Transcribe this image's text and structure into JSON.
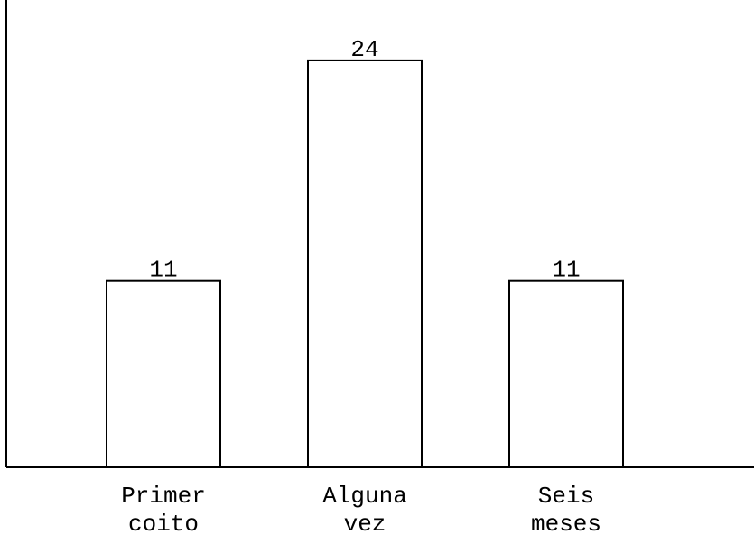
{
  "chart_data": {
    "type": "bar",
    "categories": [
      [
        "Primer",
        "coito"
      ],
      [
        "Alguna",
        "vez"
      ],
      [
        "Seis",
        "meses"
      ]
    ],
    "values": [
      11,
      24,
      11
    ],
    "data_labels": [
      "11",
      "24",
      "11"
    ],
    "title": "",
    "xlabel": "",
    "ylabel": "",
    "ylim": [
      0,
      26.5
    ],
    "grid": false,
    "legend": "none",
    "colors": {
      "bar_fill": "#ffffff",
      "bar_stroke": "#000000",
      "axis": "#000000"
    }
  }
}
